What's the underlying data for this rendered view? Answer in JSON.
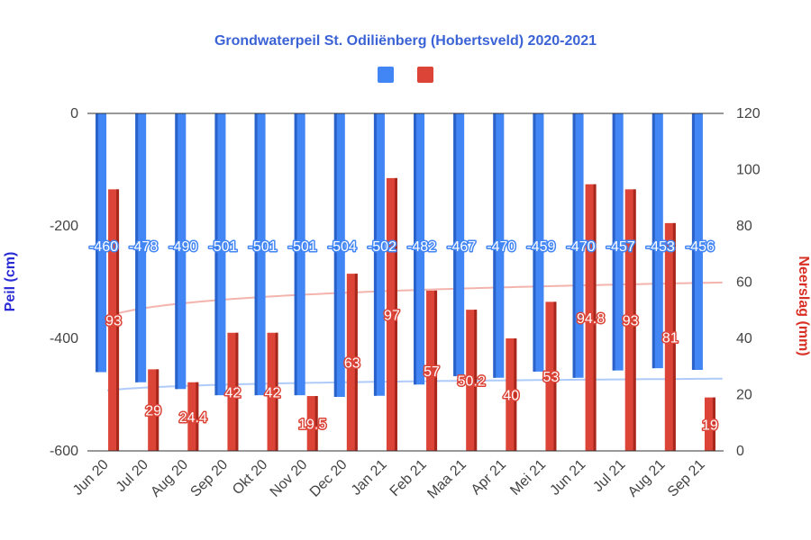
{
  "chart_data": {
    "type": "bar",
    "title": "Grondwaterpeil St. Odiliënberg (Hobertsveld) 2020-2021",
    "categories": [
      "Jun 20",
      "Jul 20",
      "Aug 20",
      "Sep 20",
      "Okt 20",
      "Nov 20",
      "Dec 20",
      "Jan 21",
      "Feb 21",
      "Maa 21",
      "Apr 21",
      "Mei 21",
      "Jun 21",
      "Jul 21",
      "Aug 21",
      "Sep 21"
    ],
    "series": [
      {
        "axis": "left",
        "color": "#4285f4",
        "values": [
          -460,
          -478,
          -490,
          -501,
          -501,
          -501,
          -504,
          -502,
          -482,
          -467,
          -470,
          -459,
          -470,
          -457,
          -453,
          -456
        ]
      },
      {
        "axis": "right",
        "color": "#db4437",
        "values": [
          93,
          29,
          24.4,
          42,
          42,
          19.5,
          63,
          97,
          57,
          50.2,
          40,
          53,
          94.8,
          93,
          81,
          19
        ],
        "labels": [
          "93",
          "29",
          "24.4",
          "42",
          "42",
          "19.5",
          "63",
          "97",
          "57",
          "50.2",
          "40",
          "53",
          "94.8",
          "93",
          "81",
          "19"
        ]
      }
    ],
    "trendlines": [
      {
        "series": 0,
        "type": "logarithmic",
        "color": "#aecbfa"
      },
      {
        "series": 1,
        "type": "logarithmic",
        "color": "#f4b4ae"
      }
    ],
    "y_left": {
      "label": "Peil (cm)",
      "ylim": [
        -600,
        0
      ],
      "ticks": [
        "0",
        "-200",
        "-400",
        "-600"
      ],
      "tick_values": [
        0,
        -200,
        -400,
        -600
      ],
      "color": "#2b2bd6"
    },
    "y_right": {
      "label": "Neerslag (mm)",
      "ylim": [
        0,
        120
      ],
      "ticks": [
        "120",
        "100",
        "80",
        "60",
        "40",
        "20",
        "0"
      ],
      "tick_values": [
        120,
        100,
        80,
        60,
        40,
        20,
        0
      ],
      "color": "#d93025"
    },
    "legend_position": "top-center",
    "grid": false
  }
}
